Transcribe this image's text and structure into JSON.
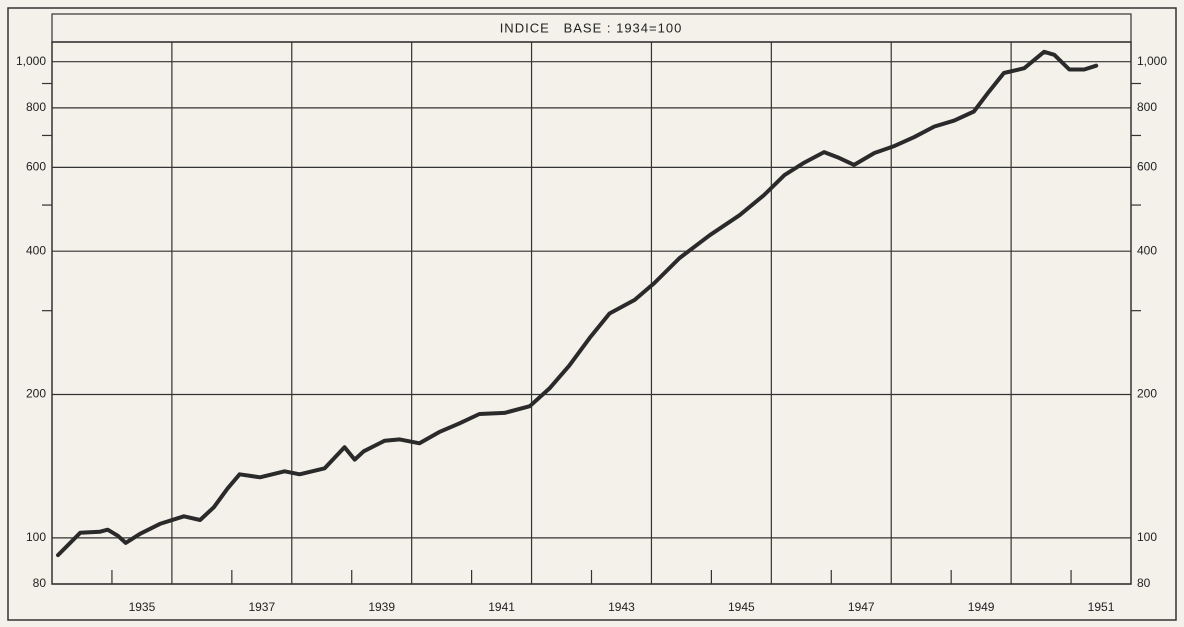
{
  "chart_data": {
    "type": "line",
    "title": "INDICE   BASE : 1934=100",
    "log_y": true,
    "grid": true,
    "color": "#2a2a2a",
    "x": [
      1934.1,
      1934.47,
      1934.8,
      1934.93,
      1935.1,
      1935.23,
      1935.47,
      1935.8,
      1936.2,
      1936.47,
      1936.7,
      1936.93,
      1937.13,
      1937.47,
      1937.88,
      1938.13,
      1938.55,
      1938.88,
      1939.05,
      1939.2,
      1939.55,
      1939.8,
      1940.13,
      1940.47,
      1940.8,
      1941.13,
      1941.55,
      1941.97,
      1942.3,
      1942.63,
      1942.97,
      1943.3,
      1943.72,
      1944.05,
      1944.47,
      1944.97,
      1945.47,
      1945.88,
      1946.22,
      1946.55,
      1946.88,
      1947.13,
      1947.38,
      1947.72,
      1948.05,
      1948.38,
      1948.72,
      1949.05,
      1949.38,
      1949.63,
      1949.88,
      1950.22,
      1950.55,
      1950.72,
      1950.97,
      1951.22,
      1951.42
    ],
    "values": [
      92,
      102.5,
      103,
      104,
      101,
      97.6,
      102,
      107,
      111,
      109,
      116,
      127,
      136,
      134,
      138,
      136,
      140,
      155,
      146,
      152,
      160,
      161,
      158,
      167,
      174,
      182,
      183,
      189,
      206,
      230,
      263,
      296,
      316,
      343,
      387,
      432,
      476,
      525,
      578,
      614,
      646,
      628,
      607,
      643,
      665,
      694,
      731,
      752,
      786,
      865,
      947,
      969,
      1049,
      1034,
      963,
      963,
      981
    ],
    "xlim": [
      1934,
      1952
    ],
    "xticks": [
      1935,
      1937,
      1939,
      1941,
      1943,
      1945,
      1947,
      1949,
      1951
    ],
    "x_gridlines": [
      1936,
      1938,
      1940,
      1942,
      1944,
      1946,
      1948,
      1950
    ],
    "ylim": [
      80,
      1100
    ],
    "yticks": [
      80,
      100,
      200,
      400,
      600,
      800,
      {
        "value": 1000,
        "label": "1,000"
      }
    ],
    "yminor": [
      300,
      500,
      700,
      900
    ]
  }
}
